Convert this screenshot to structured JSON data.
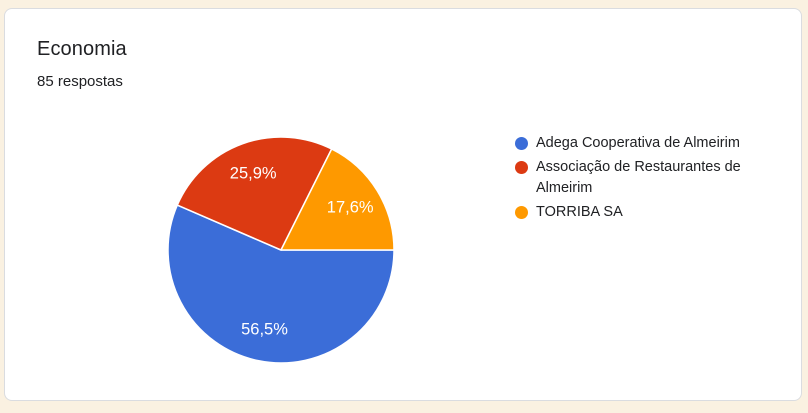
{
  "page": {
    "background_color": "#faf1e1"
  },
  "card": {
    "background_color": "#ffffff",
    "border_color": "#dadce0",
    "title": "Economia",
    "response_count": "85 respostas"
  },
  "chart_data": {
    "type": "pie",
    "title": "Economia",
    "subtitle": "85 respostas",
    "unit": "percent",
    "start_angle_deg": 90,
    "direction": "clockwise",
    "legend_position": "right",
    "label_text_color": "#ffffff",
    "slices": [
      {
        "label": "Adega Cooperativa de Almeirim",
        "value": 56.5,
        "display": "56,5%",
        "color": "#3b6dd8"
      },
      {
        "label": "Associação de Restaurantes de Almeirim",
        "value": 25.9,
        "display": "25,9%",
        "color": "#dc3a12"
      },
      {
        "label": "TORRIBA SA",
        "value": 17.6,
        "display": "17,6%",
        "color": "#fe9900"
      }
    ]
  }
}
